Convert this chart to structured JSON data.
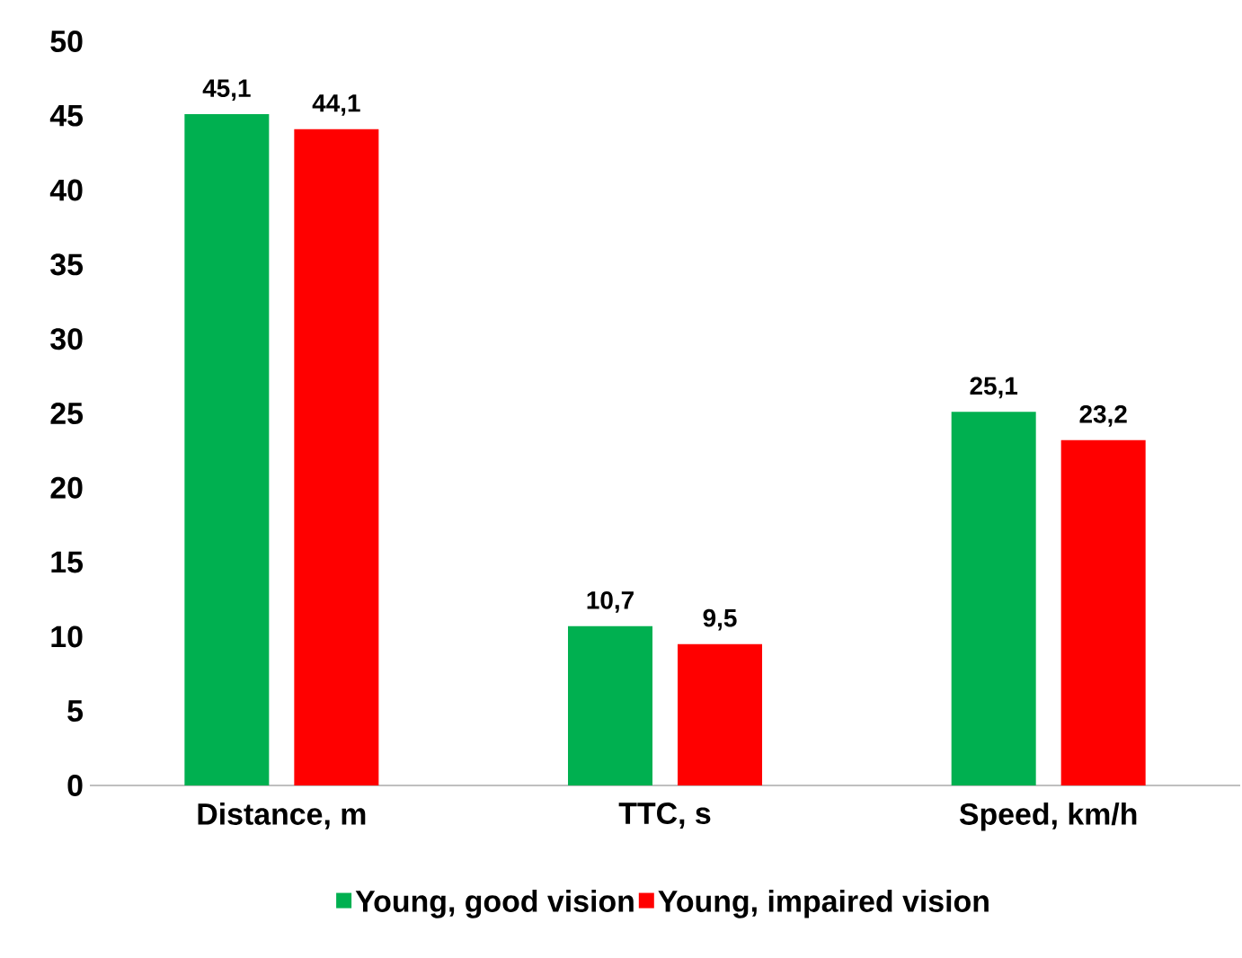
{
  "chart_data": {
    "type": "bar",
    "categories": [
      "Distance, m",
      "TTC, s",
      "Speed, km/h"
    ],
    "series": [
      {
        "name": "Young, good vision",
        "color": "#00b050",
        "values": [
          45.1,
          10.7,
          25.1
        ],
        "value_labels": [
          "45,1",
          "10,7",
          "25,1"
        ]
      },
      {
        "name": "Young, impaired vision",
        "color": "#ff0000",
        "values": [
          44.1,
          9.5,
          23.2
        ],
        "value_labels": [
          "44,1",
          "9,5",
          "23,2"
        ]
      }
    ],
    "ylim": [
      0,
      50
    ],
    "yticks": [
      0,
      5,
      10,
      15,
      20,
      25,
      30,
      35,
      40,
      45,
      50
    ],
    "legend": "bottom"
  }
}
